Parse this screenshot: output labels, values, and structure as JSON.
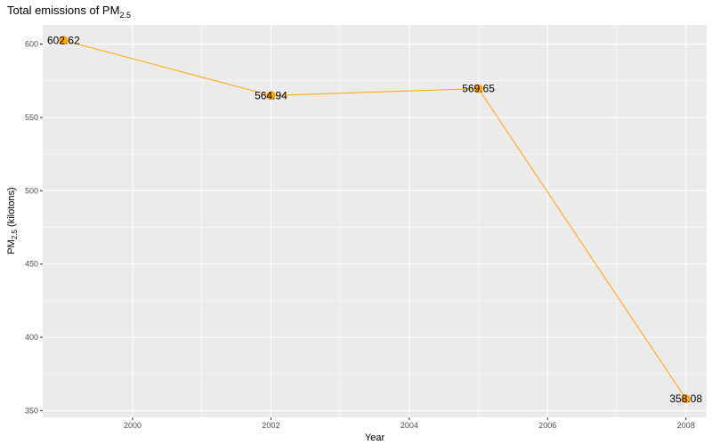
{
  "chart_data": {
    "type": "line",
    "title": {
      "main": "Total emissions of PM",
      "sub": "2.5"
    },
    "xlabel": "Year",
    "ylabel": {
      "main": "PM",
      "sub": "2.5",
      "rest": " (kilotons)"
    },
    "x": [
      1999,
      2002,
      2005,
      2008
    ],
    "series": [
      {
        "values": [
          602.62,
          564.94,
          569.65,
          358.08
        ]
      }
    ],
    "data_labels": [
      "602.62",
      "564.94",
      "569.65",
      "358.08"
    ],
    "xlim": [
      1998.7,
      2008.3
    ],
    "ylim": [
      345.4,
      613.1
    ],
    "xticks": [
      2000,
      2002,
      2004,
      2006,
      2008
    ],
    "xtick_labels": [
      "2000",
      "2002",
      "2004",
      "2006",
      "2008"
    ],
    "yticks": [
      350,
      400,
      450,
      500,
      550,
      600
    ],
    "ytick_labels": [
      "350",
      "400",
      "450",
      "500",
      "550",
      "600"
    ],
    "grid": true,
    "colors": {
      "line": "#ffa500",
      "point": "#ffa500",
      "panel": "#ebebeb",
      "grid": "#ffffff"
    }
  }
}
